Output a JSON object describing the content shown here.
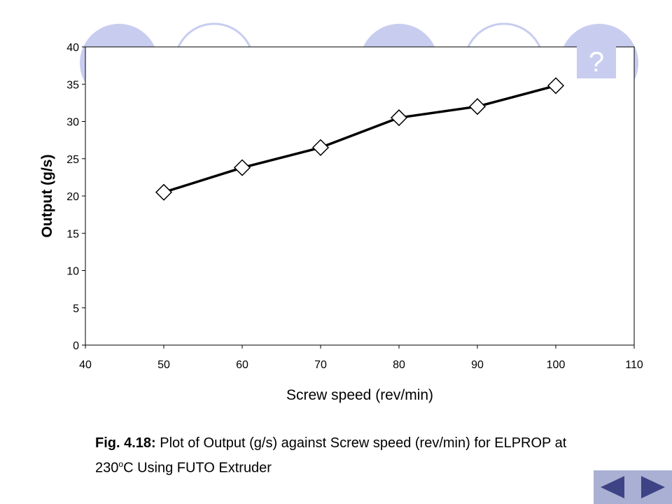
{
  "help_button": {
    "label": "?"
  },
  "caption": {
    "fig_label": "Fig. 4.18:",
    "line1_text": "Plot of Output (g/s) against Screw speed (rev/min) for ELPROP at",
    "line2_prefix": "230",
    "line2_sup": "o",
    "line2_suffix": "C Using FUTO Extruder"
  },
  "navigation": {
    "prev_icon": "triangle-left-icon",
    "next_icon": "triangle-right-icon"
  },
  "colors": {
    "deco_circle": "#c8cdf0",
    "help_bg": "#c8cdf0",
    "nav_bg": "#a9b0d3",
    "nav_arrow": "#3d4384",
    "series": "#000000"
  },
  "chart_data": {
    "type": "line",
    "title": "",
    "xlabel": "Screw speed (rev/min)",
    "ylabel": "Output (g/s)",
    "xlim": [
      40,
      110
    ],
    "ylim": [
      0,
      40
    ],
    "x_ticks": [
      "40",
      "50",
      "60",
      "70",
      "80",
      "90",
      "100",
      "110"
    ],
    "y_ticks": [
      "0",
      "5",
      "10",
      "15",
      "20",
      "25",
      "30",
      "35",
      "40"
    ],
    "grid": false,
    "legend": "none",
    "marker": "diamond",
    "series": [
      {
        "x": [
          50,
          60,
          70,
          80,
          90,
          100
        ],
        "y": [
          20.5,
          23.8,
          26.5,
          30.5,
          32.0,
          34.8
        ]
      }
    ]
  }
}
